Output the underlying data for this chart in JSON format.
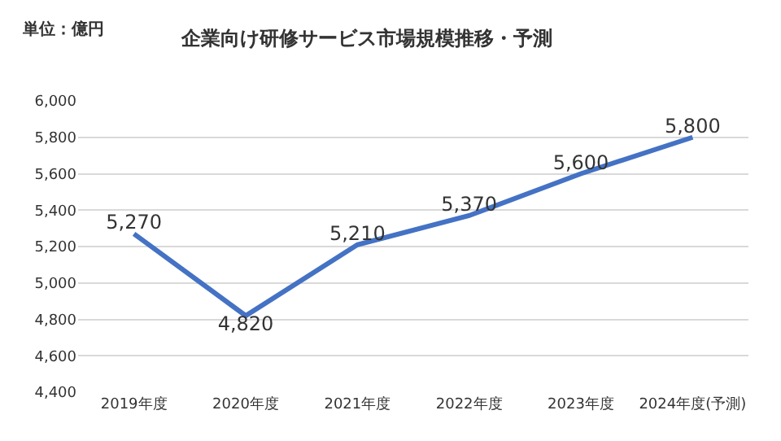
{
  "chart_data": {
    "type": "line",
    "title": "企業向け研修サービス市場規模推移・予測",
    "annotations": [
      "単位：億円"
    ],
    "categories": [
      "2019年度",
      "2020年度",
      "2021年度",
      "2022年度",
      "2023年度",
      "2024年度(予測)"
    ],
    "values": [
      5270,
      4820,
      5210,
      5370,
      5600,
      5800
    ],
    "color": "#4472c4",
    "ylim": [
      4400,
      6000
    ],
    "yticks": [
      {
        "value": 4400,
        "label": "4,400"
      },
      {
        "value": 4600,
        "label": "4,600"
      },
      {
        "value": 4800,
        "label": "4,800"
      },
      {
        "value": 5000,
        "label": "5,000"
      },
      {
        "value": 5200,
        "label": "5,200"
      },
      {
        "value": 5400,
        "label": "5,400"
      },
      {
        "value": 5600,
        "label": "5,600"
      },
      {
        "value": 5800,
        "label": "5,800"
      },
      {
        "value": 6000,
        "label": "6,000"
      }
    ],
    "grid": "y",
    "marker": "none",
    "line_style": "solid",
    "value_labels": [
      "5,270",
      "4,820",
      "5,210",
      "5,370",
      "5,600",
      "5,800"
    ]
  }
}
